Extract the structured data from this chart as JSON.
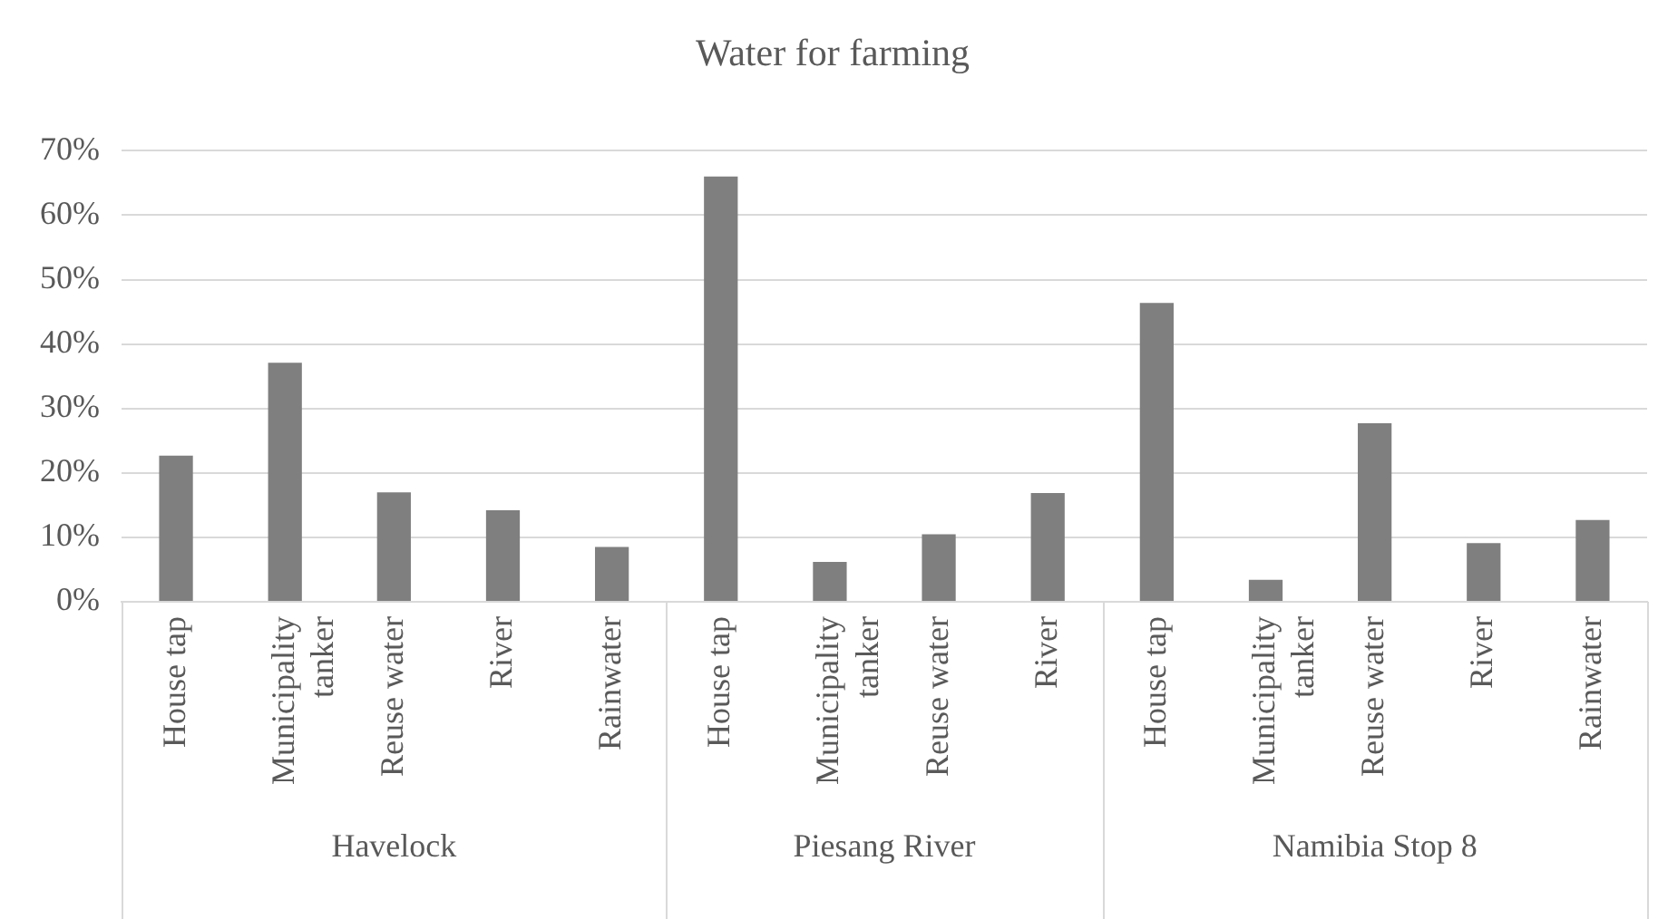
{
  "chart_data": {
    "type": "bar",
    "title": "Water for farming",
    "categories": [
      "House tap",
      "Municipality tanker",
      "Reuse water",
      "River",
      "Rainwater",
      "House tap",
      "Municipality tanker",
      "Reuse water",
      "River",
      "House tap",
      "Municipality tanker",
      "Reuse water",
      "River",
      "Rainwater"
    ],
    "series": [
      {
        "color": "#7f7f7f",
        "values": [
          22.7,
          37.1,
          17,
          14.2,
          8.5,
          null,
          null,
          null,
          null,
          null,
          null,
          null,
          null,
          null
        ]
      },
      {
        "color": "#7f7f7f",
        "values": [
          null,
          null,
          null,
          null,
          null,
          66,
          6.2,
          10.5,
          16.9,
          null,
          null,
          null,
          null,
          null
        ]
      },
      {
        "color": "#7f7f7f",
        "values": [
          null,
          null,
          null,
          null,
          null,
          null,
          null,
          null,
          null,
          46.4,
          3.4,
          27.7,
          9.1,
          12.7
        ]
      }
    ],
    "ylim": [
      0,
      70
    ],
    "yticks": [
      {
        "value": 0,
        "label": "0%"
      },
      {
        "value": 10,
        "label": "10%"
      },
      {
        "value": 20,
        "label": "20%"
      },
      {
        "value": 30,
        "label": "30%"
      },
      {
        "value": 40,
        "label": "40%"
      },
      {
        "value": 50,
        "label": "50%"
      },
      {
        "value": 60,
        "label": "60%"
      },
      {
        "value": 70,
        "label": "70%"
      }
    ],
    "annotations": [
      "Havelock",
      "Piesang River",
      "Namibia Stop 8"
    ],
    "grid": "y",
    "legend": false
  }
}
